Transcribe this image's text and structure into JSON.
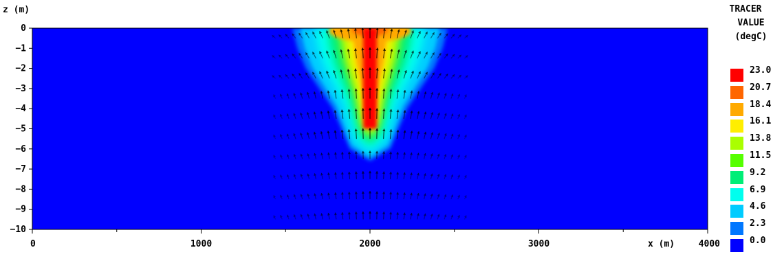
{
  "chart_data": {
    "type": "heatmap",
    "title": "",
    "xlabel": "x (m)",
    "ylabel": "z (m)",
    "xlim": [
      0,
      4000
    ],
    "ylim": [
      -10,
      0
    ],
    "x_ticks": [
      0,
      1000,
      2000,
      3000,
      4000
    ],
    "z_ticks": [
      0,
      -1,
      -2,
      -3,
      -4,
      -5,
      -6,
      -7,
      -8,
      -9,
      -10
    ],
    "background_value": 0.0,
    "legend": {
      "title_lines": [
        "TRACER",
        "VALUE",
        "(degC)"
      ],
      "placement": "right",
      "levels": [
        {
          "label": "23.0",
          "color": "#ff0000"
        },
        {
          "label": "20.7",
          "color": "#ff6600"
        },
        {
          "label": "18.4",
          "color": "#ffaa00"
        },
        {
          "label": "16.1",
          "color": "#ffee00"
        },
        {
          "label": "13.8",
          "color": "#aaff00"
        },
        {
          "label": "11.5",
          "color": "#55ff00"
        },
        {
          "label": "9.2",
          "color": "#00ee77"
        },
        {
          "label": "6.9",
          "color": "#00ffee"
        },
        {
          "label": "4.6",
          "color": "#00ccff"
        },
        {
          "label": "2.3",
          "color": "#0077ff"
        },
        {
          "label": "0.0",
          "color": "#0000ff"
        }
      ]
    },
    "plume": {
      "center_x": 2000,
      "profile": [
        {
          "z": 0,
          "half_width": 460
        },
        {
          "z": -1,
          "half_width": 430
        },
        {
          "z": -2,
          "half_width": 380
        },
        {
          "z": -3,
          "half_width": 300
        },
        {
          "z": -4,
          "half_width": 220
        },
        {
          "z": -5,
          "half_width": 170
        },
        {
          "z": -6,
          "half_width": 120
        },
        {
          "z": -6.6,
          "half_width": 0
        }
      ],
      "core": {
        "half_width": 40,
        "z_bottom": -5,
        "value": 23.0
      },
      "vectors": "velocity arrows pointing upward near x = 2000 m, with lateral spreading between x ≈ 1400 m and 2600 m"
    }
  }
}
